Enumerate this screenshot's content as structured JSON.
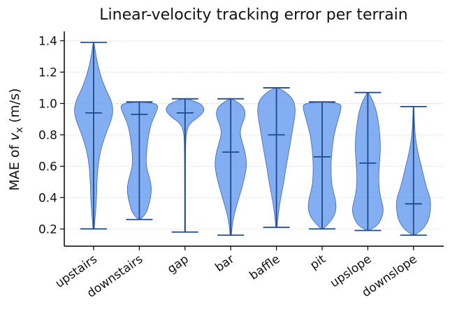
{
  "chart_data": {
    "type": "violin",
    "title": "Linear-velocity tracking error per terrain",
    "ylabel_prefix": "MAE of ",
    "ylabel_var": "v",
    "ylabel_sub": "x",
    "ylabel_suffix": " (m/s)",
    "xlabel": "",
    "ylim": [
      0.09,
      1.46
    ],
    "yticks": [
      "0.2",
      "0.4",
      "0.6",
      "0.8",
      "1.0",
      "1.2",
      "1.4"
    ],
    "grid": "y-dotted",
    "colors": {
      "body": "#5b93ee",
      "edge": "#3a66b8",
      "lines": "#1f4a8a"
    },
    "categories": [
      "upstairs",
      "downstairs",
      "gap",
      "bar",
      "baffle",
      "pit",
      "upslope",
      "downslope"
    ],
    "violins": [
      {
        "label": "upstairs",
        "min": 0.2,
        "max": 1.39,
        "median": 0.94,
        "density": [
          [
            0.2,
            0.03
          ],
          [
            0.25,
            0.06
          ],
          [
            0.3,
            0.1
          ],
          [
            0.4,
            0.15
          ],
          [
            0.5,
            0.17
          ],
          [
            0.6,
            0.22
          ],
          [
            0.7,
            0.35
          ],
          [
            0.8,
            0.6
          ],
          [
            0.9,
            0.92
          ],
          [
            0.96,
            1.0
          ],
          [
            1.02,
            0.9
          ],
          [
            1.1,
            0.58
          ],
          [
            1.2,
            0.3
          ],
          [
            1.3,
            0.12
          ],
          [
            1.39,
            0.02
          ]
        ]
      },
      {
        "label": "downstairs",
        "min": 0.26,
        "max": 1.01,
        "median": 0.93,
        "density": [
          [
            0.26,
            0.05
          ],
          [
            0.3,
            0.35
          ],
          [
            0.35,
            0.48
          ],
          [
            0.4,
            0.58
          ],
          [
            0.45,
            0.62
          ],
          [
            0.5,
            0.58
          ],
          [
            0.55,
            0.46
          ],
          [
            0.6,
            0.36
          ],
          [
            0.65,
            0.35
          ],
          [
            0.7,
            0.38
          ],
          [
            0.75,
            0.42
          ],
          [
            0.8,
            0.48
          ],
          [
            0.85,
            0.56
          ],
          [
            0.9,
            0.7
          ],
          [
            0.95,
            0.88
          ],
          [
            0.98,
            0.96
          ],
          [
            1.0,
            0.85
          ],
          [
            1.01,
            0.1
          ]
        ]
      },
      {
        "label": "gap",
        "min": 0.18,
        "max": 1.03,
        "median": 0.94,
        "density": [
          [
            0.18,
            0.02
          ],
          [
            0.3,
            0.02
          ],
          [
            0.5,
            0.02
          ],
          [
            0.7,
            0.03
          ],
          [
            0.8,
            0.05
          ],
          [
            0.85,
            0.15
          ],
          [
            0.88,
            0.32
          ],
          [
            0.9,
            0.55
          ],
          [
            0.93,
            0.85
          ],
          [
            0.96,
            1.0
          ],
          [
            0.99,
            0.88
          ],
          [
            1.01,
            0.6
          ],
          [
            1.03,
            0.12
          ]
        ]
      },
      {
        "label": "bar",
        "min": 0.16,
        "max": 1.03,
        "median": 0.69,
        "density": [
          [
            0.16,
            0.03
          ],
          [
            0.25,
            0.1
          ],
          [
            0.35,
            0.3
          ],
          [
            0.45,
            0.55
          ],
          [
            0.55,
            0.75
          ],
          [
            0.62,
            0.82
          ],
          [
            0.7,
            0.72
          ],
          [
            0.78,
            0.52
          ],
          [
            0.82,
            0.48
          ],
          [
            0.86,
            0.55
          ],
          [
            0.92,
            0.75
          ],
          [
            0.97,
            0.7
          ],
          [
            1.0,
            0.45
          ],
          [
            1.03,
            0.05
          ]
        ]
      },
      {
        "label": "baffle",
        "min": 0.21,
        "max": 1.1,
        "median": 0.8,
        "density": [
          [
            0.21,
            0.03
          ],
          [
            0.3,
            0.1
          ],
          [
            0.4,
            0.22
          ],
          [
            0.5,
            0.38
          ],
          [
            0.6,
            0.5
          ],
          [
            0.7,
            0.65
          ],
          [
            0.8,
            0.78
          ],
          [
            0.9,
            0.92
          ],
          [
            0.97,
            0.98
          ],
          [
            1.03,
            0.85
          ],
          [
            1.08,
            0.4
          ],
          [
            1.1,
            0.05
          ]
        ]
      },
      {
        "label": "pit",
        "min": 0.2,
        "max": 1.01,
        "median": 0.66,
        "density": [
          [
            0.2,
            0.05
          ],
          [
            0.25,
            0.45
          ],
          [
            0.3,
            0.68
          ],
          [
            0.35,
            0.72
          ],
          [
            0.4,
            0.66
          ],
          [
            0.45,
            0.55
          ],
          [
            0.5,
            0.48
          ],
          [
            0.6,
            0.45
          ],
          [
            0.7,
            0.5
          ],
          [
            0.8,
            0.6
          ],
          [
            0.9,
            0.82
          ],
          [
            0.97,
            0.98
          ],
          [
            1.0,
            0.95
          ],
          [
            1.01,
            0.1
          ]
        ]
      },
      {
        "label": "upslope",
        "min": 0.19,
        "max": 1.07,
        "median": 0.62,
        "density": [
          [
            0.19,
            0.03
          ],
          [
            0.22,
            0.5
          ],
          [
            0.28,
            0.75
          ],
          [
            0.33,
            0.8
          ],
          [
            0.38,
            0.7
          ],
          [
            0.45,
            0.58
          ],
          [
            0.55,
            0.55
          ],
          [
            0.65,
            0.62
          ],
          [
            0.75,
            0.65
          ],
          [
            0.85,
            0.58
          ],
          [
            0.95,
            0.45
          ],
          [
            1.02,
            0.25
          ],
          [
            1.07,
            0.03
          ]
        ]
      },
      {
        "label": "downslope",
        "min": 0.16,
        "max": 0.98,
        "median": 0.36,
        "density": [
          [
            0.16,
            0.05
          ],
          [
            0.2,
            0.5
          ],
          [
            0.25,
            0.75
          ],
          [
            0.3,
            0.85
          ],
          [
            0.35,
            0.88
          ],
          [
            0.4,
            0.85
          ],
          [
            0.45,
            0.7
          ],
          [
            0.52,
            0.55
          ],
          [
            0.6,
            0.4
          ],
          [
            0.7,
            0.2
          ],
          [
            0.8,
            0.08
          ],
          [
            0.9,
            0.04
          ],
          [
            0.98,
            0.02
          ]
        ]
      }
    ]
  }
}
